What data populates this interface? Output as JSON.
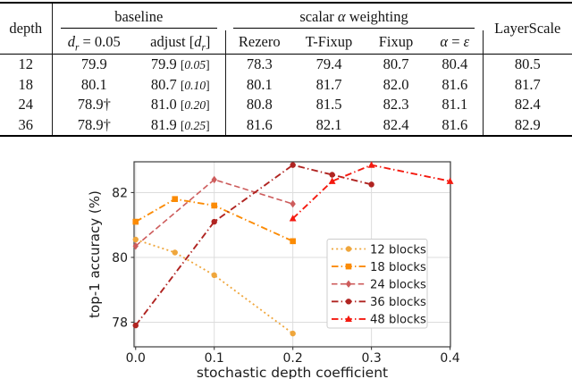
{
  "table": {
    "col_groups": [
      {
        "label": "depth"
      },
      {
        "label": "baseline",
        "children": [
          "d_r = 0.05",
          "adjust [d_r]"
        ]
      },
      {
        "label": "scalar α weighting",
        "children": [
          "Rezero",
          "T-Fixup",
          "Fixup",
          "α = ε"
        ]
      },
      {
        "label": "LayerScale"
      }
    ],
    "rows": [
      [
        "12",
        "79.9",
        "79.9 [0.05]",
        "78.3",
        "79.4",
        "80.7",
        "80.4",
        "80.5"
      ],
      [
        "18",
        "80.1",
        "80.7 [0.10]",
        "80.1",
        "81.7",
        "82.0",
        "81.6",
        "81.7"
      ],
      [
        "24",
        "78.9†",
        "81.0 [0.20]",
        "80.8",
        "81.5",
        "82.3",
        "81.1",
        "82.4"
      ],
      [
        "36",
        "78.9†",
        "81.9 [0.25]",
        "81.6",
        "82.1",
        "82.4",
        "81.6",
        "82.9"
      ]
    ]
  },
  "chart_data": {
    "type": "line",
    "title": "",
    "xlabel": "stochastic depth coefficient",
    "ylabel": "top-1 accuracy (%)",
    "xlim": [
      -0.002,
      0.4005
    ],
    "ylim": [
      77.24,
      82.95
    ],
    "xticks": [
      "0.0",
      "0.1",
      "0.2",
      "0.3",
      "0.4"
    ],
    "xtick_values": [
      0.0,
      0.1,
      0.2,
      0.3,
      0.4
    ],
    "yticks": [
      "78",
      "80",
      "82"
    ],
    "ytick_values": [
      78,
      80,
      82
    ],
    "grid": true,
    "grid_color": "#dcdcdc",
    "spine_color": "#3c3c3c",
    "legend_position": "lower right inside",
    "series": [
      {
        "name": "12 blocks",
        "color": "#efa63c",
        "linestyle": "dotted",
        "marker": "circle",
        "x": [
          0,
          0.05,
          0.1,
          0.2
        ],
        "y": [
          80.55,
          80.15,
          79.45,
          77.65
        ]
      },
      {
        "name": "18 blocks",
        "color": "#fb8b05",
        "linestyle": "dashdot",
        "marker": "square",
        "x": [
          0,
          0.05,
          0.1,
          0.2
        ],
        "y": [
          81.1,
          81.8,
          81.6,
          80.5
        ]
      },
      {
        "name": "24 blocks",
        "color": "#cd5c5c",
        "linestyle": "dashed",
        "marker": "diamond",
        "x": [
          0,
          0.1,
          0.2
        ],
        "y": [
          80.35,
          82.4,
          81.65
        ]
      },
      {
        "name": "36 blocks",
        "color": "#b02421",
        "linestyle": "dashdot",
        "marker": "circle",
        "x": [
          0,
          0.1,
          0.2,
          0.25,
          0.3
        ],
        "y": [
          77.9,
          81.1,
          82.85,
          82.55,
          82.25
        ]
      },
      {
        "name": "48 blocks",
        "color": "#f41a10",
        "linestyle": "dashdot",
        "marker": "triangle",
        "x": [
          0.2,
          0.25,
          0.3,
          0.4
        ],
        "y": [
          81.2,
          82.35,
          82.85,
          82.35
        ]
      }
    ]
  }
}
